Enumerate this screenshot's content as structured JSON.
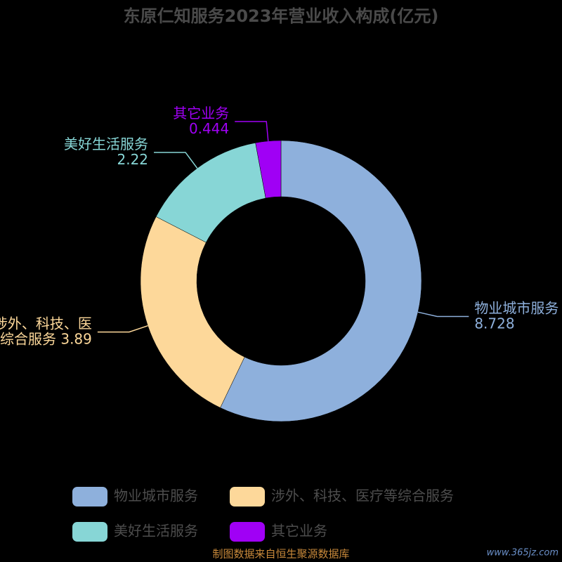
{
  "chart_data": {
    "type": "pie",
    "donut": true,
    "title": "东原仁知服务2023年营业收入构成(亿元)",
    "categories": [
      "物业城市服务",
      "涉外、科技、医疗等综合服务",
      "美好生活服务",
      "其它业务"
    ],
    "values": [
      8.728,
      3.89,
      2.22,
      0.444
    ],
    "colors": [
      "#8eb0dc",
      "#fdd89a",
      "#87d6d6",
      "#a000f5"
    ],
    "source": "制图数据来自恒生聚源数据库",
    "watermark": "www.365jz.com"
  }
}
